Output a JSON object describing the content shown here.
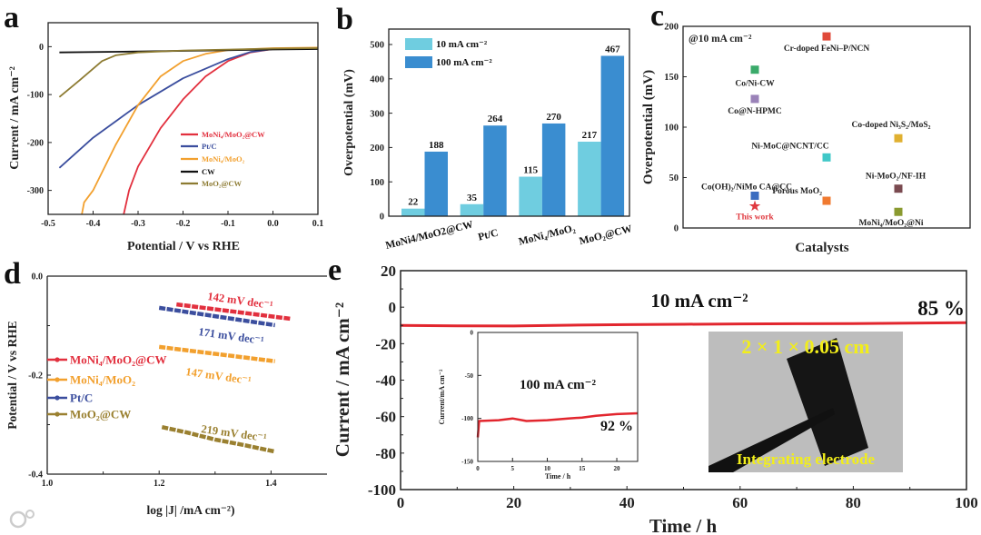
{
  "panel_letters": [
    "a",
    "b",
    "c",
    "d",
    "e"
  ],
  "watermark": "大数跨境",
  "chart_data": [
    {
      "panel": "a",
      "type": "line",
      "xlabel": "Potential / V vs RHE",
      "ylabel": "Current  / mA cm⁻²",
      "xlim": [
        -0.5,
        0.1
      ],
      "ylim": [
        -350,
        50
      ],
      "xticks": [
        -0.5,
        -0.4,
        -0.3,
        -0.2,
        -0.1,
        0.0,
        0.1
      ],
      "xtick_labels": [
        "-0.5",
        "-0.4",
        "-0.3",
        "-0.2",
        "-0.1",
        "0.0",
        "0.1"
      ],
      "yticks": [
        0,
        -100,
        -200,
        -300
      ],
      "ytick_labels": [
        "0",
        "-100",
        "-200",
        "-300"
      ],
      "legend_position": "center-right",
      "series": [
        {
          "name": "MoNi₄/MoO₂@CW",
          "color": "#e2303e",
          "x": [
            -0.332,
            -0.32,
            -0.3,
            -0.25,
            -0.2,
            -0.15,
            -0.1,
            -0.05,
            0,
            0.1
          ],
          "y": [
            -350,
            -300,
            -250,
            -170,
            -110,
            -62,
            -30,
            -12,
            -5,
            -3
          ]
        },
        {
          "name": "Pt/C",
          "color": "#3b4e9e",
          "x": [
            -0.475,
            -0.4,
            -0.3,
            -0.2,
            -0.1,
            -0.05,
            0,
            0.1
          ],
          "y": [
            -253,
            -190,
            -122,
            -66,
            -26,
            -11,
            -5,
            -3
          ]
        },
        {
          "name": "MoNi₄/MoO₂",
          "color": "#f2a02e",
          "x": [
            -0.425,
            -0.42,
            -0.4,
            -0.35,
            -0.3,
            -0.25,
            -0.2,
            -0.15,
            -0.1,
            0,
            0.1
          ],
          "y": [
            -350,
            -325,
            -300,
            -205,
            -122,
            -62,
            -30,
            -15,
            -7,
            -3,
            -2
          ]
        },
        {
          "name": "CW",
          "color": "#111111",
          "x": [
            -0.475,
            -0.3,
            0,
            0.1
          ],
          "y": [
            -12,
            -10,
            -6,
            -5
          ]
        },
        {
          "name": "MoO₂@CW",
          "color": "#8d7b32",
          "x": [
            -0.475,
            -0.43,
            -0.38,
            -0.35,
            -0.3,
            -0.2,
            0,
            0.1
          ],
          "y": [
            -105,
            -70,
            -30,
            -18,
            -12,
            -8,
            -4,
            -3
          ]
        }
      ]
    },
    {
      "panel": "b",
      "type": "bar",
      "ylabel": "Overpotential (mV)",
      "ylim": [
        0,
        545
      ],
      "yticks": [
        0,
        100,
        200,
        300,
        400,
        500
      ],
      "ytick_labels": [
        "0",
        "100",
        "200",
        "300",
        "400",
        "500"
      ],
      "categories": [
        "MoNi4/MoO2@CW",
        "Pt/C",
        "MoNi₄/MoO₂",
        "MoO₂@CW"
      ],
      "legend_position": "top-left",
      "series": [
        {
          "name": "10 mA cm⁻²",
          "color": "#6fcde0",
          "values": [
            22,
            35,
            115,
            217
          ],
          "labels": [
            "22",
            "35",
            "115",
            "217"
          ]
        },
        {
          "name": "100 mA cm⁻²",
          "color": "#3a8dd0",
          "values": [
            188,
            264,
            270,
            467
          ],
          "labels": [
            "188",
            "264",
            "270",
            "467"
          ]
        }
      ]
    },
    {
      "panel": "c",
      "type": "scatter",
      "xlabel": "Catalysts",
      "ylabel": "Overpotential (mV)",
      "annotation": "@10 mA cm⁻²",
      "xlim": [
        0,
        4
      ],
      "ylim": [
        0,
        200
      ],
      "yticks": [
        0,
        50,
        100,
        150,
        200
      ],
      "ytick_labels": [
        "0",
        "50",
        "100",
        "150",
        "200"
      ],
      "points": [
        {
          "label": "This work",
          "x": 1,
          "y": 22,
          "color": "#e03a40",
          "marker": "star"
        },
        {
          "label": "Co(OH)₂/NiMo CA@CC",
          "x": 1,
          "y": 32,
          "color": "#3a6cc0",
          "marker": "square"
        },
        {
          "label": "Co/Ni-CW",
          "x": 1,
          "y": 157,
          "color": "#3aaa6a",
          "marker": "square"
        },
        {
          "label": "Co@N-HPMC",
          "x": 1,
          "y": 128,
          "color": "#9a82b8",
          "marker": "square"
        },
        {
          "label": "Cr-doped FeNi–P/NCN",
          "x": 2,
          "y": 190,
          "color": "#e04a3a",
          "marker": "square"
        },
        {
          "label": "Ni-MoC@NCNT/CC",
          "x": 2,
          "y": 70,
          "color": "#40c8c8",
          "marker": "square"
        },
        {
          "label": "Porous MoO₂",
          "x": 2,
          "y": 27,
          "color": "#f07a30",
          "marker": "square"
        },
        {
          "label": "Co-doped Ni₃S₂/MoS₂",
          "x": 3,
          "y": 89,
          "color": "#e0b030",
          "marker": "square"
        },
        {
          "label": "Ni-MoO₂/NF-IH",
          "x": 3,
          "y": 39,
          "color": "#7a4a50",
          "marker": "square"
        },
        {
          "label": "MoNi₄/MoO₂@Ni",
          "x": 3,
          "y": 16,
          "color": "#8a9a30",
          "marker": "square"
        }
      ]
    },
    {
      "panel": "d",
      "type": "line",
      "xlabel": "log |J| /mA cm⁻²)",
      "ylabel": "Potential / V vs RHE",
      "xlim": [
        1.0,
        1.5
      ],
      "ylim": [
        -0.4,
        0.0
      ],
      "xticks": [
        1.0,
        1.2,
        1.4
      ],
      "xtick_labels": [
        "1.0",
        "1.2",
        "1.4"
      ],
      "yticks": [
        0.0,
        -0.2,
        -0.4
      ],
      "ytick_labels": [
        "0.0",
        "-0.2",
        "-0.4"
      ],
      "legend_position": "center-left",
      "series": [
        {
          "name": "MoNi₄/MoO₂@CW",
          "color": "#e2303e",
          "slope_label": "142 mV dec⁻¹",
          "x": [
            1.231,
            1.434
          ],
          "y": [
            -0.057,
            -0.086
          ]
        },
        {
          "name": "MoNi₄/MoO₂",
          "color": "#f2a02e",
          "slope_label": "147 mV dec⁻¹",
          "x": [
            1.2,
            1.407
          ],
          "y": [
            -0.143,
            -0.172
          ]
        },
        {
          "name": "Pt/C",
          "color": "#3b4e9e",
          "slope_label": "171 mV dec⁻¹",
          "x": [
            1.2,
            1.407
          ],
          "y": [
            -0.064,
            -0.099
          ]
        },
        {
          "name": "MoO₂@CW",
          "color": "#9a8030",
          "slope_label": "219 mV dec⁻¹",
          "x": [
            1.205,
            1.25,
            1.3,
            1.35,
            1.405
          ],
          "y": [
            -0.305,
            -0.316,
            -0.33,
            -0.341,
            -0.354
          ]
        }
      ]
    },
    {
      "panel": "e",
      "type": "line",
      "xlabel": "Time / h",
      "ylabel": "Current / mA cm⁻²",
      "xlim": [
        0,
        100
      ],
      "ylim": [
        -100,
        20
      ],
      "xticks": [
        0,
        20,
        40,
        60,
        80,
        100
      ],
      "xtick_labels": [
        "0",
        "20",
        "40",
        "60",
        "80",
        "100"
      ],
      "yticks": [
        20,
        0,
        -20,
        -40,
        -60,
        -80,
        -100
      ],
      "ytick_labels": [
        "20",
        "0",
        "-20",
        "-40",
        "-60",
        "-80",
        "-100"
      ],
      "annotation": "10 mA cm⁻²",
      "retention": "85 %",
      "series": [
        {
          "name": "10 mA cm⁻²",
          "color": "#e2262e",
          "x": [
            0,
            10,
            20,
            30,
            40,
            50,
            60,
            70,
            80,
            90,
            100
          ],
          "y": [
            -10,
            -10.2,
            -10.3,
            -9.9,
            -9.6,
            -9.4,
            -9.2,
            -9.1,
            -9,
            -8.8,
            -8.5
          ]
        }
      ],
      "photo": {
        "size_label": "2 × 1 × 0.05 cm",
        "caption": "Integrating electrode"
      }
    },
    {
      "panel": "e-inset",
      "type": "line",
      "xlabel": "Time / h",
      "ylabel": "Current/mA cm⁻²",
      "xlim": [
        0,
        23
      ],
      "ylim": [
        -150,
        0
      ],
      "xticks": [
        0,
        5,
        10,
        15,
        20
      ],
      "xtick_labels": [
        "0",
        "5",
        "10",
        "15",
        "20"
      ],
      "yticks": [
        0,
        -50,
        -100,
        -150
      ],
      "ytick_labels": [
        "0",
        "-50",
        "-100",
        "-150"
      ],
      "annotation": "100 mA cm⁻²",
      "retention": "92 %",
      "series": [
        {
          "name": "100 mA cm⁻²",
          "color": "#e2262e",
          "x": [
            0,
            0.2,
            3,
            5,
            7,
            10,
            13,
            15,
            17,
            20,
            23
          ],
          "y": [
            -122,
            -103,
            -102,
            -100,
            -103,
            -102,
            -100,
            -99,
            -97,
            -95,
            -94
          ]
        }
      ]
    }
  ]
}
